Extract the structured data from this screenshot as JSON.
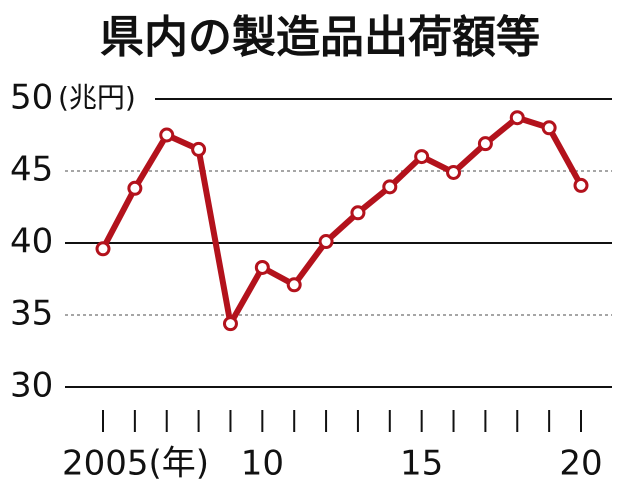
{
  "chart_data": {
    "type": "line",
    "title": "県内の製造品出荷額等",
    "y_label": "(兆円)",
    "x": [
      2005,
      2006,
      2007,
      2008,
      2009,
      2010,
      2011,
      2012,
      2013,
      2014,
      2015,
      2016,
      2017,
      2018,
      2019,
      2020
    ],
    "series": [
      {
        "name": "製造品出荷額等",
        "color": "#b3121c",
        "values": [
          39.6,
          43.8,
          47.5,
          46.5,
          34.4,
          38.3,
          37.1,
          40.1,
          42.1,
          43.9,
          46.0,
          44.9,
          46.9,
          48.7,
          48.0,
          44.0
        ]
      }
    ],
    "xlim": [
      2005,
      2020
    ],
    "xticks": [
      {
        "value": 2005,
        "label": "2005(年)"
      },
      {
        "value": 2010,
        "label": "10"
      },
      {
        "value": 2015,
        "label": "15"
      },
      {
        "value": 2020,
        "label": "20"
      }
    ],
    "ylim": [
      30,
      50
    ],
    "yticks": [
      30,
      35,
      40,
      45,
      50
    ],
    "grid": true
  }
}
